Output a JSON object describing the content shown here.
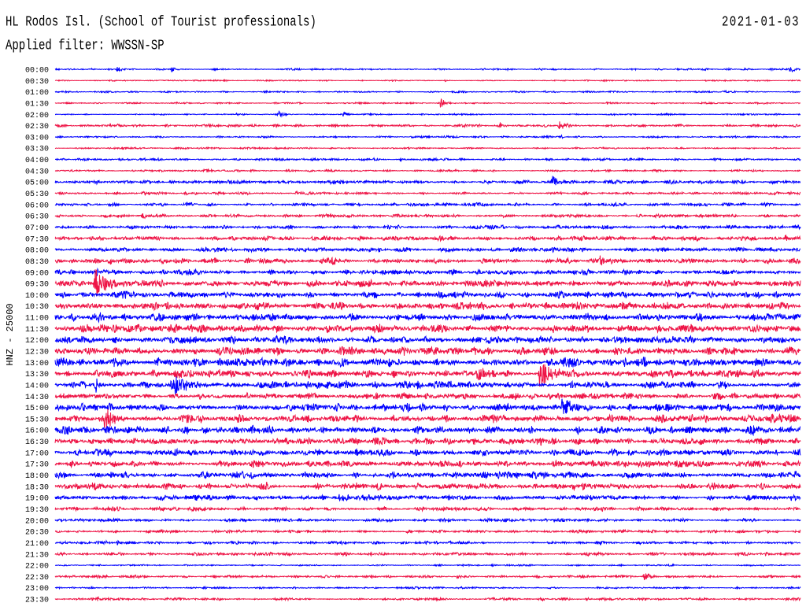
{
  "header": {
    "title": "HL Rodos Isl. (School of Tourist professionals)",
    "date": "2021-01-03",
    "filter": "Applied filter: WWSSN-SP"
  },
  "chart_data": {
    "type": "line",
    "ylabel": "HNZ - 25000",
    "xlim": [
      0,
      30
    ],
    "colors": {
      "hour_rows": "#0000ff",
      "half_hour_rows": "#ee1446"
    },
    "rows": [
      {
        "label": "00:00",
        "amp": 0.07,
        "events": [
          [
            2.5,
            0.25
          ],
          [
            4.7,
            0.25
          ],
          [
            19.5,
            0.15
          ],
          [
            29.6,
            0.3
          ]
        ]
      },
      {
        "label": "00:30",
        "amp": 0.05,
        "events": [
          [
            6.8,
            0.12
          ],
          [
            15.7,
            0.12
          ]
        ]
      },
      {
        "label": "01:00",
        "amp": 0.06,
        "events": [
          [
            26.9,
            0.2
          ]
        ]
      },
      {
        "label": "01:30",
        "amp": 0.06,
        "events": [
          [
            15.5,
            0.45
          ],
          [
            22.2,
            0.2
          ],
          [
            28.5,
            0.15
          ]
        ]
      },
      {
        "label": "02:00",
        "amp": 0.06,
        "events": [
          [
            7.3,
            0.12
          ],
          [
            9.0,
            0.3
          ],
          [
            11.6,
            0.3
          ]
        ]
      },
      {
        "label": "02:30",
        "amp": 0.1,
        "events": [
          [
            2.5,
            0.2
          ],
          [
            6.2,
            0.2
          ],
          [
            17.9,
            0.25
          ],
          [
            20.3,
            0.45
          ]
        ]
      },
      {
        "label": "03:00",
        "amp": 0.07,
        "events": [
          [
            20.3,
            0.2
          ]
        ]
      },
      {
        "label": "03:30",
        "amp": 0.06,
        "events": [
          [
            2.7,
            0.15
          ],
          [
            8.9,
            0.12
          ]
        ]
      },
      {
        "label": "04:00",
        "amp": 0.1,
        "events": [
          [
            13.9,
            0.15
          ]
        ]
      },
      {
        "label": "04:30",
        "amp": 0.08,
        "events": [
          [
            6.0,
            0.25
          ]
        ]
      },
      {
        "label": "05:00",
        "amp": 0.14,
        "events": [
          [
            1.6,
            0.2
          ],
          [
            20.0,
            0.6
          ]
        ]
      },
      {
        "label": "05:30",
        "amp": 0.1,
        "events": [
          [
            3.5,
            0.2
          ],
          [
            9.7,
            0.15
          ]
        ]
      },
      {
        "label": "06:00",
        "amp": 0.12,
        "events": [
          [
            10.1,
            0.15
          ]
        ]
      },
      {
        "label": "06:30",
        "amp": 0.12,
        "events": [
          [
            3.5,
            0.2
          ],
          [
            24.1,
            0.2
          ]
        ]
      },
      {
        "label": "07:00",
        "amp": 0.15,
        "events": []
      },
      {
        "label": "07:30",
        "amp": 0.17,
        "events": [
          [
            29.4,
            0.25
          ]
        ]
      },
      {
        "label": "08:00",
        "amp": 0.17,
        "events": [
          [
            20.1,
            0.2
          ]
        ]
      },
      {
        "label": "08:30",
        "amp": 0.2,
        "events": [
          [
            11.1,
            0.25
          ],
          [
            21.9,
            0.5
          ]
        ]
      },
      {
        "label": "09:00",
        "amp": 0.2,
        "events": [
          [
            1.6,
            0.45
          ]
        ]
      },
      {
        "label": "09:30",
        "amp": 0.25,
        "events": [
          [
            1.6,
            1.4
          ]
        ]
      },
      {
        "label": "10:00",
        "amp": 0.25,
        "events": []
      },
      {
        "label": "10:30",
        "amp": 0.28,
        "events": [
          [
            21.7,
            0.3
          ]
        ]
      },
      {
        "label": "11:00",
        "amp": 0.3,
        "events": [
          [
            25.8,
            0.35
          ]
        ]
      },
      {
        "label": "11:30",
        "amp": 0.3,
        "events": [
          [
            26.0,
            0.3
          ]
        ]
      },
      {
        "label": "12:00",
        "amp": 0.28,
        "events": []
      },
      {
        "label": "12:30",
        "amp": 0.3,
        "events": []
      },
      {
        "label": "13:00",
        "amp": 0.33,
        "events": [
          [
            9.9,
            0.35
          ]
        ]
      },
      {
        "label": "13:30",
        "amp": 0.3,
        "events": [
          [
            17.0,
            0.8
          ],
          [
            19.5,
            1.4
          ]
        ]
      },
      {
        "label": "14:00",
        "amp": 0.3,
        "events": [
          [
            1.6,
            0.6
          ],
          [
            4.7,
            1.2
          ]
        ]
      },
      {
        "label": "14:30",
        "amp": 0.25,
        "events": []
      },
      {
        "label": "15:00",
        "amp": 0.3,
        "events": [
          [
            20.4,
            0.7
          ]
        ]
      },
      {
        "label": "15:30",
        "amp": 0.3,
        "events": [
          [
            2.0,
            0.9
          ]
        ]
      },
      {
        "label": "16:00",
        "amp": 0.3,
        "events": [
          [
            8.2,
            0.3
          ]
        ]
      },
      {
        "label": "16:30",
        "amp": 0.25,
        "events": []
      },
      {
        "label": "17:00",
        "amp": 0.25,
        "events": []
      },
      {
        "label": "17:30",
        "amp": 0.25,
        "events": []
      },
      {
        "label": "18:00",
        "amp": 0.25,
        "events": []
      },
      {
        "label": "18:30",
        "amp": 0.25,
        "events": []
      },
      {
        "label": "19:00",
        "amp": 0.2,
        "events": [
          [
            4.3,
            0.3
          ],
          [
            11.4,
            0.25
          ]
        ]
      },
      {
        "label": "19:30",
        "amp": 0.15,
        "events": []
      },
      {
        "label": "20:00",
        "amp": 0.12,
        "events": []
      },
      {
        "label": "20:30",
        "amp": 0.12,
        "events": []
      },
      {
        "label": "21:00",
        "amp": 0.12,
        "events": [
          [
            2.5,
            0.3
          ]
        ]
      },
      {
        "label": "21:30",
        "amp": 0.12,
        "events": []
      },
      {
        "label": "22:00",
        "amp": 0.06,
        "events": [
          [
            17.6,
            0.15
          ]
        ]
      },
      {
        "label": "22:30",
        "amp": 0.1,
        "events": [
          [
            12.7,
            0.2
          ],
          [
            16.2,
            0.2
          ],
          [
            23.7,
            0.45
          ]
        ]
      },
      {
        "label": "23:00",
        "amp": 0.07,
        "events": []
      },
      {
        "label": "23:30",
        "amp": 0.1,
        "events": [
          [
            1.7,
            0.2
          ],
          [
            19.6,
            0.15
          ]
        ]
      }
    ]
  }
}
